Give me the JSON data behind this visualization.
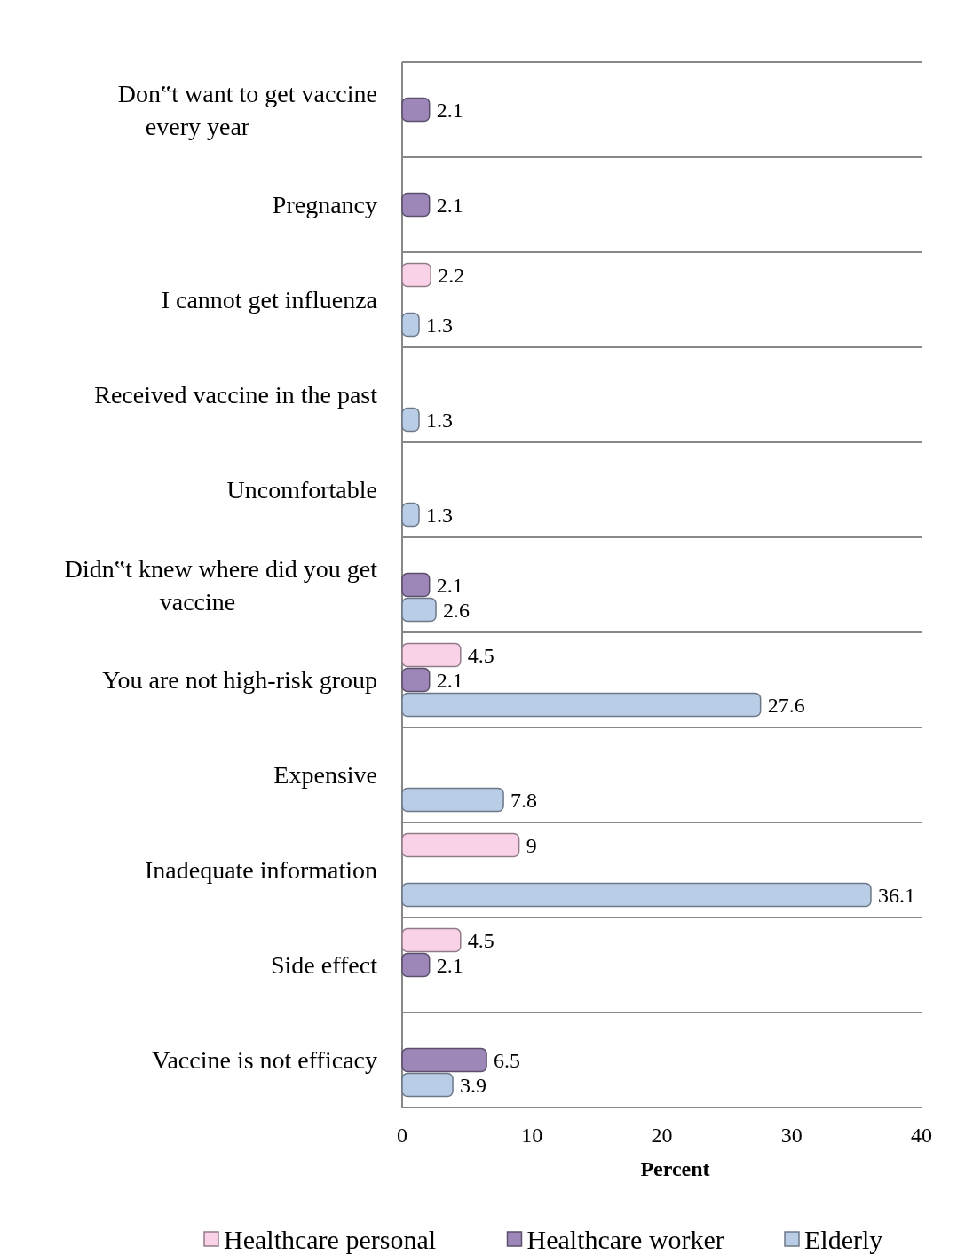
{
  "chart_data": {
    "type": "bar",
    "orientation": "horizontal",
    "categories": [
      "Don‟t want to get vaccine every year",
      "Pregnancy",
      "I cannot get influenza",
      "Received vaccine in the past",
      "Uncomfortable",
      "Didn‟t knew where did you get vaccine",
      "You are not high-risk group",
      "Expensive",
      "Inadequate information",
      "Side effect",
      "Vaccine is not efficacy"
    ],
    "series": [
      {
        "name": "Healthcare personal",
        "color": "#fad2e8",
        "values": [
          null,
          null,
          2.2,
          null,
          null,
          null,
          4.5,
          null,
          9,
          4.5,
          null
        ]
      },
      {
        "name": "Healthcare worker",
        "color": "#9c87b8",
        "values": [
          2.1,
          2.1,
          null,
          null,
          null,
          2.1,
          2.1,
          null,
          null,
          2.1,
          6.5
        ]
      },
      {
        "name": "Elderly",
        "color": "#b9cde6",
        "values": [
          null,
          null,
          1.3,
          1.3,
          1.3,
          2.6,
          27.6,
          7.8,
          36.1,
          null,
          3.9
        ]
      }
    ],
    "xlim": [
      0,
      40
    ],
    "xticks": [
      0,
      10,
      20,
      30,
      40
    ],
    "xlabel": "Percent",
    "grid": "y",
    "legend": "bottom",
    "data_labels": true
  }
}
